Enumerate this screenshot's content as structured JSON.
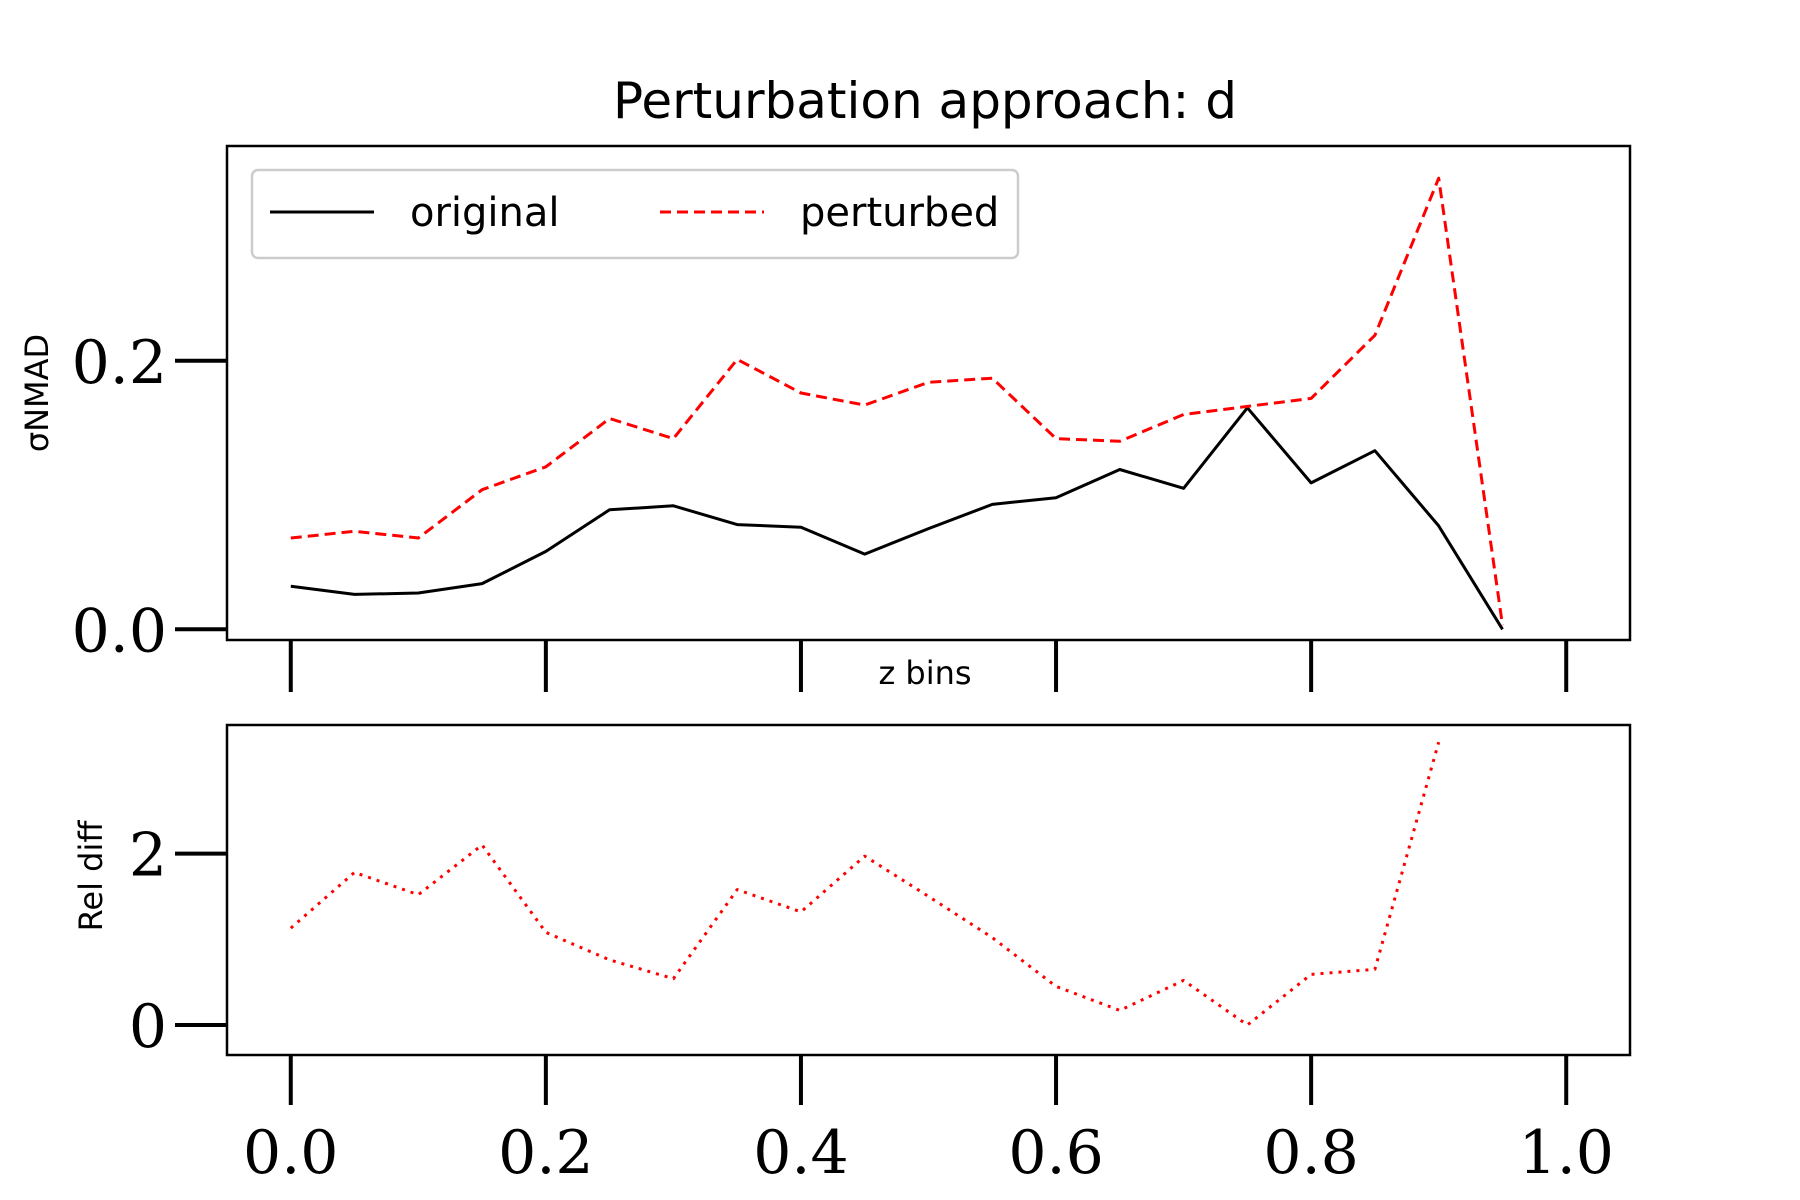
{
  "title": "Perturbation approach: d",
  "chart_data": [
    {
      "type": "line",
      "ylabel": "σNMAD",
      "xlabel": "z bins",
      "xlim": [
        -0.05,
        1.05
      ],
      "ylim": [
        -0.008,
        0.36
      ],
      "xticks": [
        0.0,
        0.2,
        0.4,
        0.6,
        0.8,
        1.0
      ],
      "yticks": [
        0.0,
        0.2
      ],
      "ytick_labels": [
        "0.0",
        "0.2"
      ],
      "legend": {
        "location": "upper-left",
        "columns": 2
      },
      "x": [
        0.0,
        0.05,
        0.1,
        0.15,
        0.2,
        0.25,
        0.3,
        0.35,
        0.4,
        0.45,
        0.5,
        0.55,
        0.6,
        0.65,
        0.7,
        0.75,
        0.8,
        0.85,
        0.9,
        0.95,
        1.0
      ],
      "series": [
        {
          "name": "original",
          "color": "#000000",
          "style": "solid",
          "values": [
            0.032,
            0.026,
            0.027,
            0.034,
            0.058,
            0.089,
            0.092,
            0.078,
            0.076,
            0.056,
            0.075,
            0.093,
            0.098,
            0.119,
            0.105,
            0.165,
            0.109,
            0.133,
            0.077,
            0.0,
            null
          ]
        },
        {
          "name": "perturbed",
          "color": "#ff0000",
          "style": "dashed",
          "values": [
            0.068,
            0.073,
            0.068,
            0.104,
            0.121,
            0.157,
            0.142,
            0.201,
            0.176,
            0.167,
            0.184,
            0.187,
            0.142,
            0.14,
            0.16,
            0.166,
            0.172,
            0.219,
            0.336,
            0.003,
            null
          ]
        }
      ]
    },
    {
      "type": "line",
      "ylabel": "Rel diff",
      "xlabel": "",
      "xlim": [
        -0.05,
        1.05
      ],
      "ylim": [
        -0.35,
        3.5
      ],
      "xticks": [
        0.0,
        0.2,
        0.4,
        0.6,
        0.8,
        1.0
      ],
      "xtick_labels": [
        "0.0",
        "0.2",
        "0.4",
        "0.6",
        "0.8",
        "1.0"
      ],
      "yticks": [
        0,
        2
      ],
      "ytick_labels": [
        "0",
        "2"
      ],
      "x": [
        0.0,
        0.05,
        0.1,
        0.15,
        0.2,
        0.25,
        0.3,
        0.35,
        0.4,
        0.45,
        0.5,
        0.55,
        0.6,
        0.65,
        0.7,
        0.75,
        0.8,
        0.85,
        0.9,
        0.95,
        1.0
      ],
      "series": [
        {
          "name": "",
          "color": "#ff0000",
          "style": "dotted",
          "values": [
            1.13,
            1.78,
            1.52,
            2.1,
            1.08,
            0.76,
            0.54,
            1.58,
            1.32,
            1.97,
            1.5,
            1.02,
            0.45,
            0.17,
            0.52,
            0.0,
            0.59,
            0.65,
            3.3,
            null,
            null
          ]
        }
      ]
    }
  ]
}
